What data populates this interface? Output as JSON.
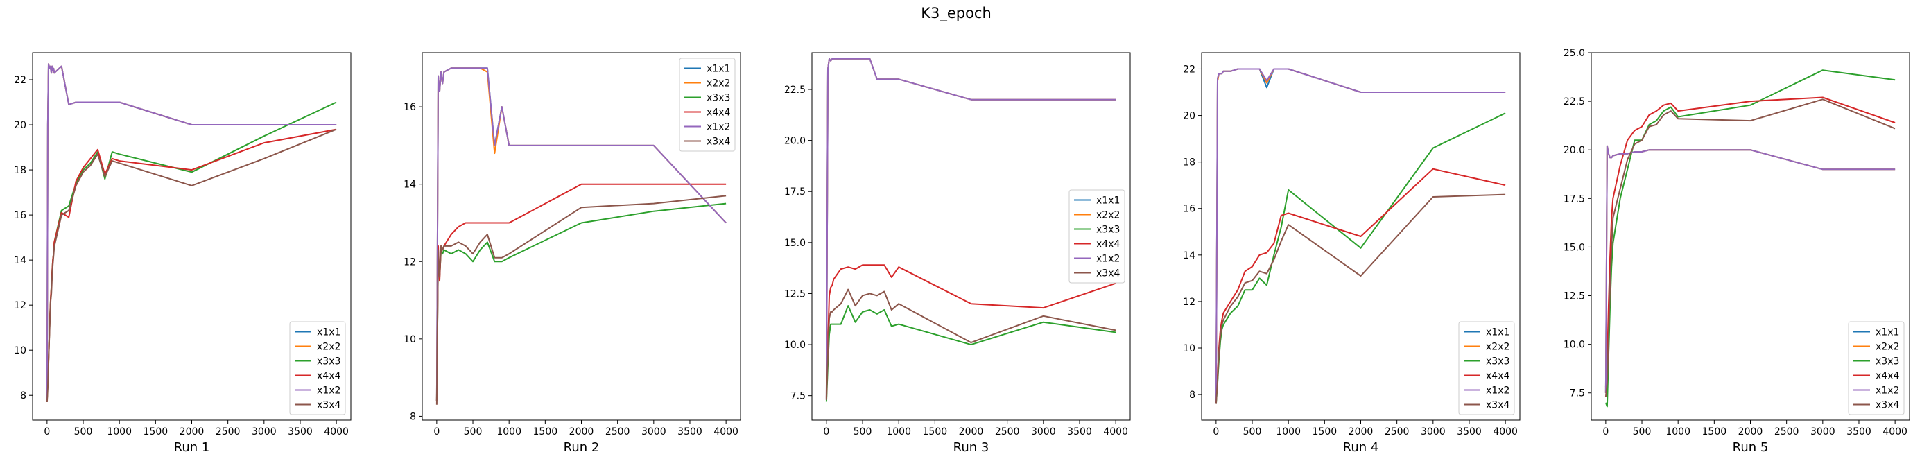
{
  "figure": {
    "title": "K3_epoch"
  },
  "colors": {
    "x1x1": "#1f77b4",
    "x2x2": "#ff7f0e",
    "x3x3": "#2ca02c",
    "x4x4": "#d62728",
    "x1x2": "#9467bd",
    "x3x4": "#8c564b"
  },
  "chart_data": [
    {
      "type": "line",
      "xlabel": "Run 1",
      "xlim": [
        -200,
        4200
      ],
      "ylim": [
        6.9,
        23.2
      ],
      "xticks": [
        0,
        500,
        1000,
        1500,
        2000,
        2500,
        3000,
        3500,
        4000
      ],
      "yticks": [
        8,
        10,
        12,
        14,
        16,
        18,
        20,
        22
      ],
      "legend": "lower-right",
      "x": [
        0,
        10,
        20,
        30,
        40,
        50,
        60,
        70,
        80,
        90,
        100,
        200,
        300,
        400,
        500,
        600,
        700,
        800,
        900,
        1000,
        2000,
        3000,
        4000
      ],
      "series": [
        {
          "name": "x1x1",
          "values": [
            7.8,
            20.0,
            22.7,
            22.5,
            22.6,
            22.5,
            22.3,
            22.6,
            22.4,
            22.5,
            22.3,
            22.6,
            20.9,
            21.0,
            21.0,
            21.0,
            21.0,
            21.0,
            21.0,
            21.0,
            20.0,
            20.0,
            20.0
          ]
        },
        {
          "name": "x2x2",
          "values": [
            7.8,
            20.0,
            22.7,
            22.5,
            22.6,
            22.5,
            22.3,
            22.6,
            22.4,
            22.5,
            22.3,
            22.6,
            20.9,
            21.0,
            21.0,
            21.0,
            21.0,
            21.0,
            21.0,
            21.0,
            20.0,
            20.0,
            20.0
          ]
        },
        {
          "name": "x3x3",
          "values": [
            7.8,
            8.5,
            9.5,
            10.5,
            11.5,
            12.3,
            12.8,
            13.5,
            14.0,
            14.3,
            14.8,
            16.2,
            16.4,
            17.4,
            18.0,
            18.3,
            18.8,
            17.6,
            18.8,
            18.7,
            17.9,
            19.5,
            21.0
          ]
        },
        {
          "name": "x4x4",
          "values": [
            7.8,
            8.5,
            9.5,
            10.5,
            11.5,
            12.3,
            12.8,
            13.5,
            14.0,
            14.3,
            14.8,
            16.1,
            15.9,
            17.5,
            18.1,
            18.5,
            18.9,
            17.8,
            18.5,
            18.4,
            18.0,
            19.2,
            19.8
          ]
        },
        {
          "name": "x1x2",
          "values": [
            7.8,
            20.0,
            22.7,
            22.5,
            22.6,
            22.5,
            22.3,
            22.6,
            22.4,
            22.5,
            22.3,
            22.6,
            20.9,
            21.0,
            21.0,
            21.0,
            21.0,
            21.0,
            21.0,
            21.0,
            20.0,
            20.0,
            20.0
          ]
        },
        {
          "name": "x3x4",
          "values": [
            7.7,
            8.3,
            9.4,
            10.4,
            11.3,
            12.2,
            12.5,
            13.3,
            13.8,
            14.2,
            14.6,
            16.0,
            16.2,
            17.3,
            17.9,
            18.2,
            18.7,
            17.7,
            18.4,
            18.3,
            17.3,
            18.5,
            19.8
          ]
        }
      ]
    },
    {
      "type": "line",
      "xlabel": "Run 2",
      "xlim": [
        -200,
        4200
      ],
      "ylim": [
        7.9,
        17.4
      ],
      "xticks": [
        0,
        500,
        1000,
        1500,
        2000,
        2500,
        3000,
        3500,
        4000
      ],
      "yticks": [
        8,
        10,
        12,
        14,
        16
      ],
      "legend": "upper-right",
      "x": [
        0,
        20,
        40,
        60,
        80,
        100,
        200,
        300,
        400,
        500,
        600,
        700,
        800,
        900,
        1000,
        2000,
        3000,
        4000
      ],
      "series": [
        {
          "name": "x1x1",
          "values": [
            8.4,
            16.8,
            16.4,
            16.9,
            16.6,
            16.9,
            17.0,
            17.0,
            17.0,
            17.0,
            17.0,
            17.0,
            15.0,
            16.0,
            15.0,
            15.0,
            15.0,
            13.0
          ]
        },
        {
          "name": "x2x2",
          "values": [
            8.4,
            16.8,
            16.4,
            16.9,
            16.6,
            16.9,
            17.0,
            17.0,
            17.0,
            17.0,
            17.0,
            16.9,
            14.8,
            16.0,
            15.0,
            15.0,
            15.0,
            13.0
          ]
        },
        {
          "name": "x3x3",
          "values": [
            8.4,
            12.2,
            11.6,
            12.3,
            12.2,
            12.3,
            12.2,
            12.3,
            12.2,
            12.0,
            12.3,
            12.5,
            12.0,
            12.0,
            12.1,
            13.0,
            13.3,
            13.5
          ]
        },
        {
          "name": "x4x4",
          "values": [
            8.4,
            12.4,
            11.5,
            12.4,
            12.3,
            12.4,
            12.7,
            12.9,
            13.0,
            13.0,
            13.0,
            13.0,
            13.0,
            13.0,
            13.0,
            14.0,
            14.0,
            14.0
          ]
        },
        {
          "name": "x1x2",
          "values": [
            8.4,
            16.8,
            16.4,
            16.9,
            16.6,
            16.9,
            17.0,
            17.0,
            17.0,
            17.0,
            17.0,
            17.0,
            15.0,
            16.0,
            15.0,
            15.0,
            15.0,
            13.0
          ]
        },
        {
          "name": "x3x4",
          "values": [
            8.3,
            12.3,
            11.6,
            12.4,
            12.3,
            12.4,
            12.4,
            12.5,
            12.4,
            12.2,
            12.5,
            12.7,
            12.1,
            12.1,
            12.2,
            13.4,
            13.5,
            13.7
          ]
        }
      ]
    },
    {
      "type": "line",
      "xlabel": "Run 3",
      "xlim": [
        -200,
        4200
      ],
      "ylim": [
        6.3,
        24.3
      ],
      "xticks": [
        0,
        500,
        1000,
        1500,
        2000,
        2500,
        3000,
        3500,
        4000
      ],
      "yticks": [
        7.5,
        10.0,
        12.5,
        15.0,
        17.5,
        20.0,
        22.5
      ],
      "legend": "center-right",
      "x": [
        0,
        20,
        40,
        60,
        80,
        100,
        200,
        300,
        400,
        500,
        600,
        700,
        800,
        900,
        1000,
        2000,
        3000,
        4000
      ],
      "series": [
        {
          "name": "x1x1",
          "values": [
            7.3,
            23.5,
            24.0,
            23.9,
            24.0,
            24.0,
            24.0,
            24.0,
            24.0,
            24.0,
            24.0,
            23.0,
            23.0,
            23.0,
            23.0,
            22.0,
            22.0,
            22.0
          ]
        },
        {
          "name": "x2x2",
          "values": [
            7.3,
            23.5,
            24.0,
            23.9,
            24.0,
            24.0,
            24.0,
            24.0,
            24.0,
            24.0,
            24.0,
            23.0,
            23.0,
            23.0,
            23.0,
            22.0,
            22.0,
            22.0
          ]
        },
        {
          "name": "x3x3",
          "values": [
            7.2,
            9.0,
            10.5,
            11.0,
            11.0,
            11.0,
            11.0,
            11.9,
            11.1,
            11.6,
            11.7,
            11.5,
            11.7,
            10.9,
            11.0,
            10.0,
            11.1,
            10.6
          ]
        },
        {
          "name": "x4x4",
          "values": [
            7.4,
            10.0,
            12.4,
            12.8,
            12.9,
            13.2,
            13.7,
            13.8,
            13.7,
            13.9,
            13.9,
            13.9,
            13.9,
            13.3,
            13.8,
            12.0,
            11.8,
            13.0
          ]
        },
        {
          "name": "x1x2",
          "values": [
            7.3,
            23.5,
            24.0,
            23.9,
            24.0,
            24.0,
            24.0,
            24.0,
            24.0,
            24.0,
            24.0,
            23.0,
            23.0,
            23.0,
            23.0,
            22.0,
            22.0,
            22.0
          ]
        },
        {
          "name": "x3x4",
          "values": [
            7.3,
            9.5,
            11.3,
            11.6,
            11.6,
            11.7,
            12.0,
            12.7,
            11.9,
            12.4,
            12.5,
            12.4,
            12.6,
            11.7,
            12.0,
            10.1,
            11.4,
            10.7
          ]
        }
      ]
    },
    {
      "type": "line",
      "xlabel": "Run 4",
      "xlim": [
        -200,
        4200
      ],
      "ylim": [
        6.9,
        22.7
      ],
      "xticks": [
        0,
        500,
        1000,
        1500,
        2000,
        2500,
        3000,
        3500,
        4000
      ],
      "yticks": [
        8,
        10,
        12,
        14,
        16,
        18,
        20,
        22
      ],
      "legend": "lower-right",
      "x": [
        0,
        20,
        40,
        60,
        80,
        100,
        200,
        300,
        400,
        500,
        600,
        700,
        800,
        900,
        1000,
        2000,
        3000,
        4000
      ],
      "series": [
        {
          "name": "x1x1",
          "values": [
            7.6,
            21.5,
            21.8,
            21.8,
            21.8,
            21.9,
            21.9,
            22.0,
            22.0,
            22.0,
            22.0,
            21.2,
            22.0,
            22.0,
            22.0,
            21.0,
            21.0,
            21.0
          ]
        },
        {
          "name": "x2x2",
          "values": [
            7.6,
            21.5,
            21.8,
            21.8,
            21.8,
            21.9,
            21.9,
            22.0,
            22.0,
            22.0,
            22.0,
            21.4,
            22.0,
            22.0,
            22.0,
            21.0,
            21.0,
            21.0
          ]
        },
        {
          "name": "x3x3",
          "values": [
            7.6,
            8.5,
            9.5,
            10.3,
            10.8,
            11.0,
            11.5,
            11.8,
            12.5,
            12.5,
            13.0,
            12.7,
            14.0,
            15.2,
            16.8,
            14.3,
            18.6,
            20.1
          ]
        },
        {
          "name": "x4x4",
          "values": [
            7.7,
            8.8,
            10.0,
            10.8,
            11.2,
            11.5,
            12.0,
            12.5,
            13.3,
            13.5,
            14.0,
            14.1,
            14.5,
            15.7,
            15.8,
            14.8,
            17.7,
            17.0
          ]
        },
        {
          "name": "x1x2",
          "values": [
            7.6,
            21.6,
            21.8,
            21.8,
            21.8,
            21.9,
            21.9,
            22.0,
            22.0,
            22.0,
            22.0,
            21.5,
            22.0,
            22.0,
            22.0,
            21.0,
            21.0,
            21.0
          ]
        },
        {
          "name": "x3x4",
          "values": [
            7.6,
            8.6,
            9.8,
            10.5,
            11.0,
            11.2,
            11.8,
            12.2,
            12.8,
            12.9,
            13.3,
            13.2,
            13.8,
            14.6,
            15.3,
            13.1,
            16.5,
            16.6
          ]
        }
      ]
    },
    {
      "type": "line",
      "xlabel": "Run 5",
      "xlim": [
        -200,
        4200
      ],
      "ylim": [
        6.1,
        25.0
      ],
      "xticks": [
        0,
        500,
        1000,
        1500,
        2000,
        2500,
        3000,
        3500,
        4000
      ],
      "yticks": [
        7.5,
        10.0,
        12.5,
        15.0,
        17.5,
        20.0,
        22.5,
        25.0
      ],
      "legend": "lower-right",
      "x": [
        0,
        20,
        40,
        60,
        80,
        100,
        200,
        300,
        400,
        500,
        600,
        700,
        800,
        900,
        1000,
        2000,
        3000,
        4000
      ],
      "series": [
        {
          "name": "x1x1",
          "values": [
            7.5,
            20.2,
            19.8,
            19.6,
            19.6,
            19.7,
            19.8,
            19.8,
            19.9,
            19.9,
            20.0,
            20.0,
            20.0,
            20.0,
            20.0,
            20.0,
            19.0,
            19.0
          ]
        },
        {
          "name": "x2x2",
          "values": [
            7.5,
            20.2,
            19.8,
            19.6,
            19.6,
            19.7,
            19.8,
            19.8,
            19.9,
            19.9,
            20.0,
            20.0,
            20.0,
            20.0,
            20.0,
            20.0,
            19.0,
            19.0
          ]
        },
        {
          "name": "x3x3",
          "values": [
            7.0,
            6.8,
            9.5,
            12.0,
            14.0,
            15.2,
            17.5,
            19.0,
            20.5,
            20.5,
            21.3,
            21.5,
            22.0,
            22.2,
            21.7,
            22.3,
            24.1,
            23.6
          ]
        },
        {
          "name": "x4x4",
          "values": [
            7.8,
            9.0,
            12.0,
            14.5,
            16.5,
            17.5,
            19.2,
            20.5,
            21.0,
            21.2,
            21.8,
            22.0,
            22.3,
            22.4,
            22.0,
            22.5,
            22.7,
            21.4
          ]
        },
        {
          "name": "x1x2",
          "values": [
            7.5,
            20.2,
            19.8,
            19.6,
            19.6,
            19.7,
            19.8,
            19.8,
            19.9,
            19.9,
            20.0,
            20.0,
            20.0,
            20.0,
            20.0,
            20.0,
            19.0,
            19.0
          ]
        },
        {
          "name": "x3x4",
          "values": [
            7.3,
            8.0,
            10.5,
            13.0,
            15.0,
            16.5,
            18.0,
            19.5,
            20.3,
            20.5,
            21.2,
            21.3,
            21.8,
            22.0,
            21.6,
            21.5,
            22.6,
            21.1
          ]
        }
      ]
    }
  ]
}
